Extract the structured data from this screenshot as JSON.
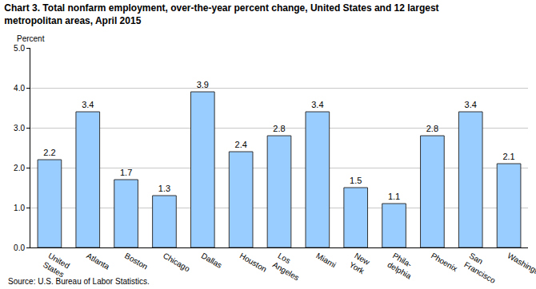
{
  "chart_data": {
    "type": "bar",
    "title": "Chart 3. Total nonfarm employment, over-the-year percent change, United States and 12 largest\nmetropolitan areas, April 2015",
    "y_label": "Percent",
    "source": "Source: U.S. Bureau of Labor Statistics.",
    "categories": [
      "United\nStates",
      "Atlanta",
      "Boston",
      "Chicago",
      "Dallas",
      "Houston",
      "Los\nAngeles",
      "Miami",
      "New\nYork",
      "Phila-\ndelphia",
      "Phoenix",
      "San\nFrancisco",
      "Washington"
    ],
    "values": [
      2.2,
      3.4,
      1.7,
      1.3,
      3.9,
      2.4,
      2.8,
      3.4,
      1.5,
      1.1,
      2.8,
      3.4,
      2.1
    ],
    "color": "#99ccff",
    "ylim": [
      0,
      5
    ],
    "yticks": [
      {
        "value": 0,
        "label": "0.0"
      },
      {
        "value": 1,
        "label": "1.0"
      },
      {
        "value": 2,
        "label": "2.0"
      },
      {
        "value": 3,
        "label": "3.0"
      },
      {
        "value": 4,
        "label": "4.0"
      },
      {
        "value": 5,
        "label": "5.0"
      }
    ],
    "grid": true,
    "data_labels": true
  }
}
